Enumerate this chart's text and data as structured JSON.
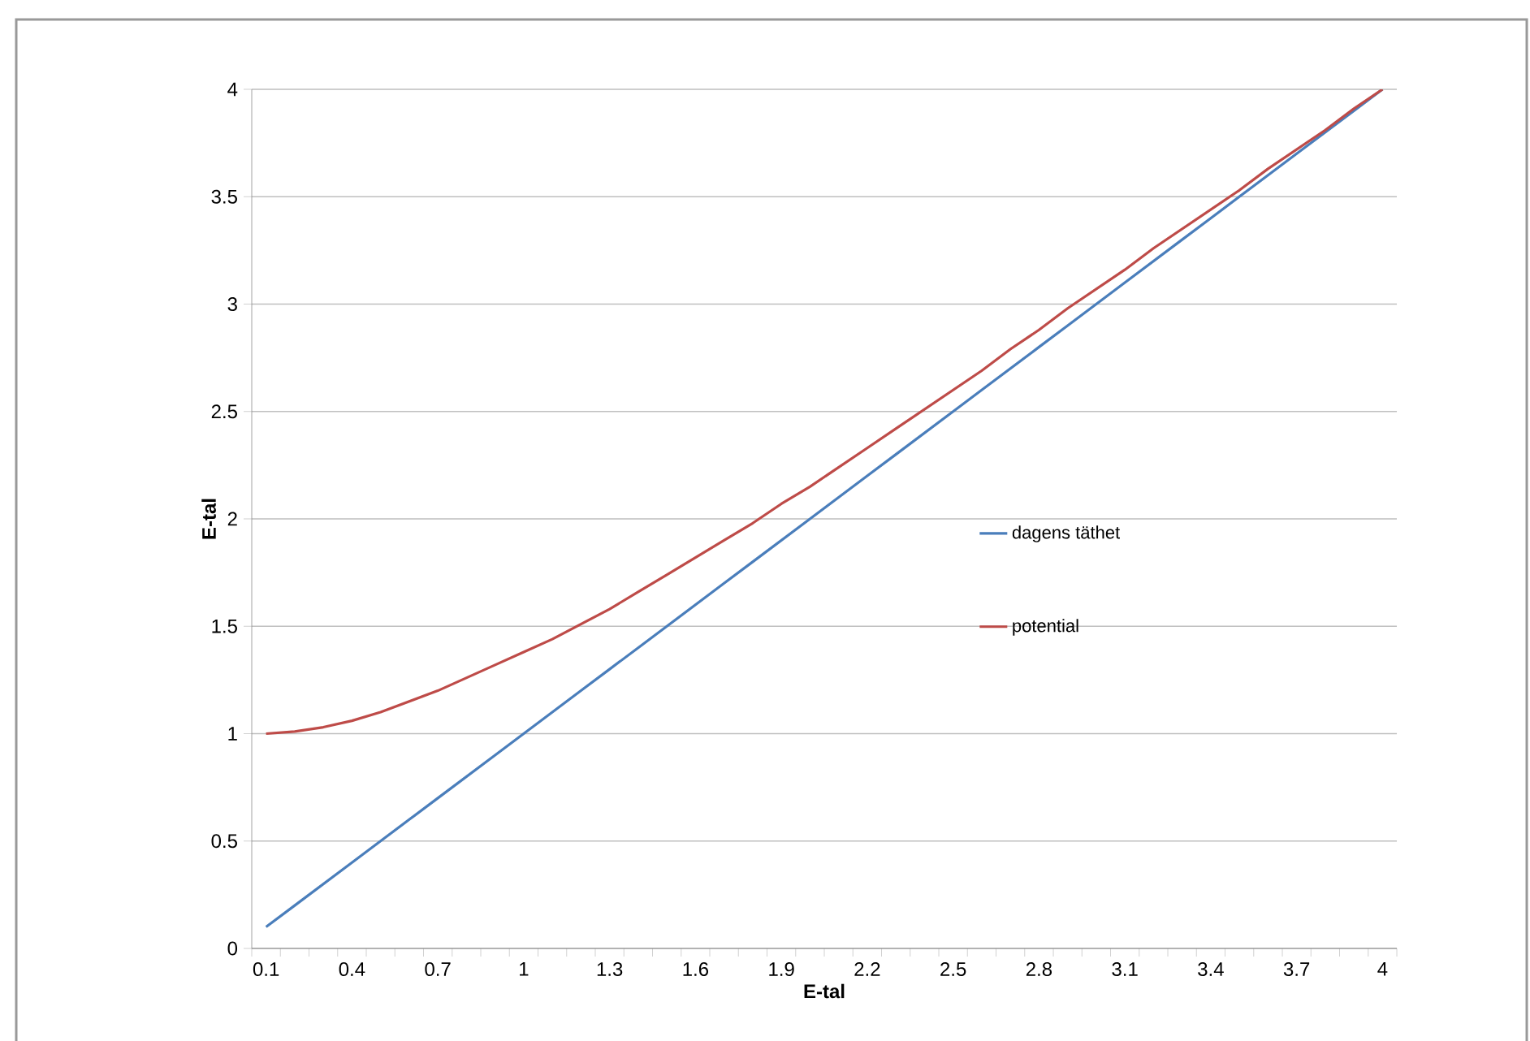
{
  "chart_data": {
    "type": "line",
    "xlabel": "E-tal",
    "ylabel": "E-tal",
    "categories": [
      "0.1",
      null,
      null,
      "0.4",
      null,
      null,
      "0.7",
      null,
      null,
      "1",
      null,
      null,
      "1.3",
      null,
      null,
      "1.6",
      null,
      null,
      "1.9",
      null,
      null,
      "2.2",
      null,
      null,
      "2.5",
      null,
      null,
      "2.8",
      null,
      null,
      "3.1",
      null,
      null,
      "3.4",
      null,
      null,
      "3.7",
      null,
      null,
      "4"
    ],
    "series": [
      {
        "name": "dagens täthet",
        "color": "#4a7ebb",
        "values": [
          0.1,
          0.2,
          0.3,
          0.4,
          0.5,
          0.6,
          0.7,
          0.8,
          0.9,
          1.0,
          1.1,
          1.2,
          1.3,
          1.4,
          1.5,
          1.6,
          1.7,
          1.8,
          1.9,
          2.0,
          2.1,
          2.2,
          2.3,
          2.4,
          2.5,
          2.6,
          2.7,
          2.8,
          2.9,
          3.0,
          3.1,
          3.2,
          3.3,
          3.4,
          3.5,
          3.6,
          3.7,
          3.8,
          3.9,
          4.0
        ]
      },
      {
        "name": "potential",
        "color": "#be4b48",
        "values": [
          1.0,
          1.01,
          1.03,
          1.06,
          1.1,
          1.15,
          1.2,
          1.26,
          1.32,
          1.38,
          1.44,
          1.51,
          1.58,
          1.66,
          1.74,
          1.82,
          1.9,
          1.98,
          2.07,
          2.15,
          2.24,
          2.33,
          2.42,
          2.51,
          2.6,
          2.69,
          2.79,
          2.88,
          2.98,
          3.07,
          3.16,
          3.26,
          3.35,
          3.44,
          3.53,
          3.63,
          3.72,
          3.81,
          3.91,
          4.0
        ]
      }
    ],
    "ylim": [
      0,
      4
    ],
    "yticks": [
      0,
      0.5,
      1,
      1.5,
      2,
      2.5,
      3,
      3.5,
      4
    ],
    "grid": "y",
    "legend": "right",
    "marker": "none",
    "line_style": "solid"
  }
}
